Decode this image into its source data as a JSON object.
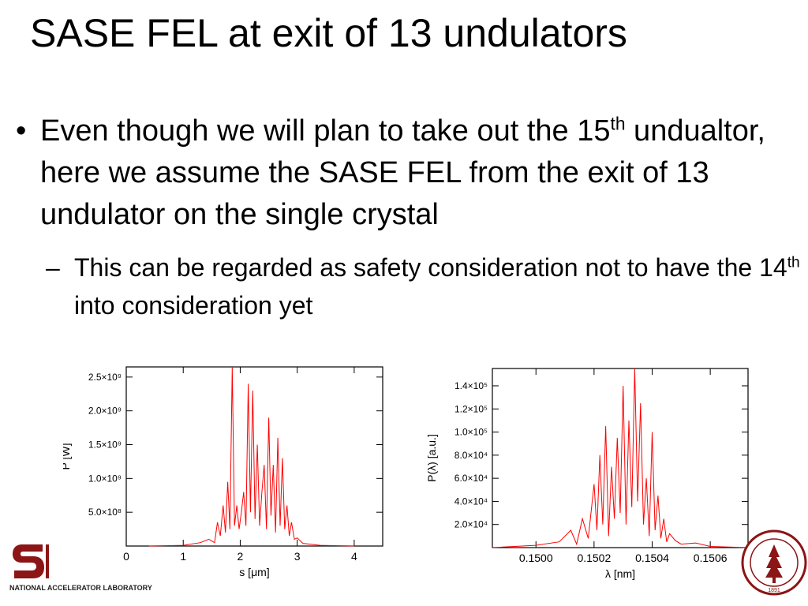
{
  "slide": {
    "title": "SASE FEL at exit of 13 undulators",
    "bullet": {
      "marker": "•",
      "text_before_sup": "Even though we will plan to take out the 15",
      "sup": "th",
      "text_after_sup": " undualtor, here we assume the SASE FEL from the exit of 13 undulator on the single crystal"
    },
    "subbullet": {
      "marker": "–",
      "text_before_sup": "This can be regarded as safety consideration not to have the 14",
      "sup": "th",
      "text_after_sup": " into consideration yet"
    }
  },
  "logo": {
    "text": "NATIONAL ACCELERATOR LABORATORY",
    "brand_color": "#8c1515"
  },
  "seal": {
    "year_text": "1891"
  },
  "chart_data": [
    {
      "type": "line",
      "color": "#ff0000",
      "xlabel": "s [μm]",
      "ylabel": "P [W]",
      "xlim": [
        0,
        4.5
      ],
      "ylim": [
        0,
        2650000000.0
      ],
      "xticks": [
        0,
        1,
        2,
        3,
        4
      ],
      "xtick_labels": [
        "0",
        "1",
        "2",
        "3",
        "4"
      ],
      "yticks": [
        500000000.0,
        1000000000.0,
        1500000000.0,
        2000000000.0,
        2500000000.0
      ],
      "ytick_labels": [
        "5.0×10⁸",
        "1.0×10⁹",
        "1.5×10⁹",
        "2.0×10⁹",
        "2.5×10⁹"
      ],
      "x": [
        0.4,
        1.0,
        1.3,
        1.45,
        1.55,
        1.6,
        1.65,
        1.7,
        1.74,
        1.78,
        1.82,
        1.86,
        1.9,
        1.94,
        1.98,
        2.02,
        2.06,
        2.1,
        2.14,
        2.18,
        2.22,
        2.26,
        2.3,
        2.34,
        2.38,
        2.42,
        2.46,
        2.5,
        2.54,
        2.58,
        2.62,
        2.66,
        2.7,
        2.74,
        2.78,
        2.82,
        2.86,
        2.9,
        2.95,
        3.0,
        3.1,
        3.4,
        4.0
      ],
      "y": [
        0.0,
        10000000.0,
        50000000.0,
        100000000.0,
        50000000.0,
        350000000.0,
        150000000.0,
        600000000.0,
        200000000.0,
        950000000.0,
        250000000.0,
        2650000000.0,
        300000000.0,
        600000000.0,
        250000000.0,
        500000000.0,
        800000000.0,
        300000000.0,
        2400000000.0,
        500000000.0,
        2300000000.0,
        400000000.0,
        1500000000.0,
        300000000.0,
        800000000.0,
        1200000000.0,
        250000000.0,
        1900000000.0,
        450000000.0,
        1200000000.0,
        200000000.0,
        1600000000.0,
        300000000.0,
        1300000000.0,
        250000000.0,
        600000000.0,
        150000000.0,
        350000000.0,
        100000000.0,
        120000000.0,
        40000000.0,
        10000000.0,
        0.0
      ]
    },
    {
      "type": "line",
      "color": "#ff0000",
      "xlabel": "λ [nm]",
      "ylabel": "P(λ) [a.u.]",
      "xlim": [
        0.14985,
        0.15073
      ],
      "ylim": [
        0,
        155000
      ],
      "xticks": [
        0.15,
        0.1502,
        0.1504,
        0.1506
      ],
      "xtick_labels": [
        "0.1500",
        "0.1502",
        "0.1504",
        "0.1506"
      ],
      "yticks": [
        20000,
        40000,
        60000,
        80000,
        100000,
        120000,
        140000
      ],
      "ytick_labels": [
        "2.0×10⁴",
        "4.0×10⁴",
        "6.0×10⁴",
        "8.0×10⁴",
        "1.0×10⁵",
        "1.2×10⁵",
        "1.4×10⁵"
      ],
      "x": [
        0.14985,
        0.15,
        0.15008,
        0.15012,
        0.15014,
        0.15016,
        0.15018,
        0.1502,
        0.15021,
        0.15022,
        0.15023,
        0.15024,
        0.15025,
        0.15026,
        0.15027,
        0.15028,
        0.15029,
        0.1503,
        0.15031,
        0.15032,
        0.15033,
        0.15034,
        0.15035,
        0.15036,
        0.15037,
        0.15038,
        0.15039,
        0.1504,
        0.15041,
        0.15042,
        0.15043,
        0.15044,
        0.15045,
        0.15046,
        0.15048,
        0.1505,
        0.15055,
        0.1506,
        0.15073
      ],
      "y": [
        0,
        2000,
        5000,
        15000,
        3000,
        25000,
        8000,
        55000,
        15000,
        80000,
        20000,
        105000,
        10000,
        70000,
        25000,
        95000,
        30000,
        140000,
        20000,
        110000,
        35000,
        155000,
        40000,
        125000,
        20000,
        60000,
        10000,
        100000,
        15000,
        45000,
        8000,
        25000,
        5000,
        12000,
        6000,
        3000,
        4000,
        1000,
        0
      ]
    }
  ]
}
